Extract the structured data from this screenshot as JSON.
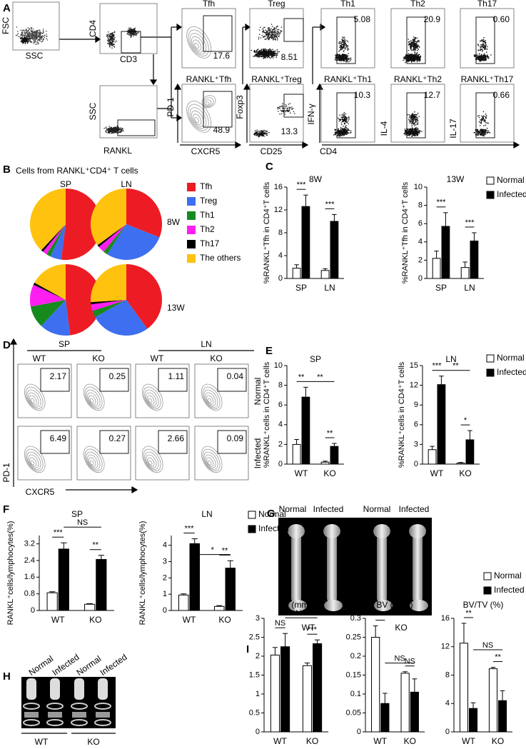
{
  "panel_letters": [
    "A",
    "B",
    "C",
    "D",
    "E",
    "F",
    "G",
    "H",
    "I"
  ],
  "panel_a": {
    "scatter_axes": [
      {
        "x": "SSC",
        "y": "FSC"
      },
      {
        "x": "CD3",
        "y": "CD4"
      },
      {
        "x": "RANKL",
        "y": "SSC"
      }
    ],
    "top_titles": [
      "Tfh",
      "Treg",
      "Th1",
      "Th2",
      "Th17"
    ],
    "top_values": [
      "17.6",
      "8.51",
      "5.08",
      "20.9",
      "0.60"
    ],
    "bottom_titles": [
      "RANKL⁺Tfh",
      "RANKL⁺Treg",
      "RANKL⁺Th1",
      "RANKL⁺Th2",
      "RANKL⁺Th17"
    ],
    "bottom_values": [
      "48.9",
      "13.3",
      "10.3",
      "12.7",
      "0.66"
    ],
    "axis_labels": [
      "PD-1",
      "CXCR5",
      "Foxp3",
      "CD25",
      "IFN-γ",
      "IL-4",
      "IL-17",
      "CD4"
    ]
  },
  "panel_b": {
    "title": "Cells from RANKL⁺CD4⁺ T cells",
    "columns": [
      "SP",
      "LN"
    ],
    "rows": [
      "8W",
      "13W"
    ],
    "legend": [
      {
        "name": "Tfh",
        "color": "#ed1c24"
      },
      {
        "name": "Treg",
        "color": "#3d6ff0"
      },
      {
        "name": "Th1",
        "color": "#178a1d"
      },
      {
        "name": "Th2",
        "color": "#ff1ef0"
      },
      {
        "name": "Th17",
        "color": "#000000"
      },
      {
        "name": "The others",
        "color": "#ffc20e"
      }
    ]
  },
  "panel_d": {
    "groups": [
      "SP",
      "LN"
    ],
    "genotypes": [
      "WT",
      "KO",
      "WT",
      "KO"
    ],
    "rows": [
      "Normal",
      "Infected"
    ],
    "values": [
      [
        "2.17",
        "0.25",
        "1.11",
        "0.04"
      ],
      [
        "6.49",
        "0.27",
        "2.66",
        "0.09"
      ]
    ],
    "y_label": "PD-1",
    "x_label": "CXCR5"
  },
  "panel_g": {
    "labels": [
      "Normal",
      "Infected",
      "Normal",
      "Infected"
    ],
    "genotypes": [
      "WT",
      "KO"
    ]
  },
  "panel_h": {
    "labels": [
      "Normal",
      "Infected",
      "Normal",
      "Infected"
    ],
    "genotypes": [
      "WT",
      "KO"
    ]
  },
  "chart_data": [
    {
      "type": "pie",
      "values": [
        52,
        5,
        2,
        2,
        1,
        38
      ]
    },
    {
      "type": "pie",
      "values": [
        31,
        28,
        2,
        3,
        1,
        35
      ]
    },
    {
      "type": "pie",
      "values": [
        48,
        14,
        10,
        10,
        1,
        17
      ]
    },
    {
      "type": "pie",
      "values": [
        40,
        27,
        3,
        3,
        1,
        26
      ]
    },
    {
      "type": "bar",
      "title": "8W",
      "y_label": "%RANKL⁺Tfh in CD4⁺T cells",
      "categories": [
        "SP",
        "LN"
      ],
      "ylim": [
        0,
        16
      ],
      "yticks": [
        0,
        4,
        8,
        12,
        16
      ],
      "series": [
        {
          "color": "#ffffff",
          "values": [
            1.8,
            1.4
          ],
          "errors": [
            0.6,
            0.3
          ]
        },
        {
          "color": "#000000",
          "values": [
            12.6,
            10.0
          ],
          "errors": [
            2.0,
            1.2
          ]
        }
      ],
      "significance": [
        "***",
        "***"
      ]
    },
    {
      "type": "bar",
      "title": "13W",
      "y_label": "%RANKL⁺Tfh in CD4⁺T cells",
      "categories": [
        "SP",
        "LN"
      ],
      "ylim": [
        0,
        10
      ],
      "yticks": [
        0,
        2,
        4,
        6,
        8,
        10
      ],
      "series": [
        {
          "name": "Normal",
          "color": "#ffffff",
          "values": [
            2.2,
            1.2
          ],
          "errors": [
            0.8,
            0.6
          ]
        },
        {
          "name": "Infected",
          "color": "#000000",
          "values": [
            5.7,
            4.1
          ],
          "errors": [
            1.5,
            0.9
          ]
        }
      ],
      "significance": [
        "***",
        "***"
      ]
    },
    {
      "type": "bar",
      "title": "SP",
      "y_label": "%RANKL⁺cells in CD4⁺T cells",
      "categories": [
        "WT",
        "KO"
      ],
      "ylim": [
        0,
        10
      ],
      "yticks": [
        0,
        2,
        4,
        6,
        8,
        10
      ],
      "series": [
        {
          "color": "#ffffff",
          "values": [
            2.0,
            0.2
          ],
          "errors": [
            0.5,
            0.1
          ]
        },
        {
          "color": "#000000",
          "values": [
            6.8,
            1.8
          ],
          "errors": [
            1.0,
            0.3
          ]
        }
      ],
      "significance": [
        "**",
        "**",
        "**"
      ]
    },
    {
      "type": "bar",
      "title": "LN",
      "y_label": "%RANKL⁺cells in CD4⁺T cells",
      "categories": [
        "WT",
        "KO"
      ],
      "ylim": [
        0,
        15
      ],
      "yticks": [
        0,
        3,
        6,
        9,
        12,
        15
      ],
      "series": [
        {
          "name": "Normal",
          "color": "#ffffff",
          "values": [
            2.2,
            0.15
          ],
          "errors": [
            0.5,
            0.1
          ]
        },
        {
          "name": "Infected",
          "color": "#000000",
          "values": [
            12.1,
            3.7
          ],
          "errors": [
            1.3,
            1.4
          ]
        }
      ],
      "significance": [
        "***",
        "*",
        "**"
      ]
    },
    {
      "type": "bar",
      "title": "SP",
      "y_label": "RANKL⁺cells/lymphocytes(%)",
      "categories": [
        "WT",
        "KO"
      ],
      "ylim": [
        0,
        3.6
      ],
      "yticks": [
        0,
        0.8,
        1.6,
        2.4,
        3.2
      ],
      "series": [
        {
          "color": "#ffffff",
          "values": [
            0.85,
            0.3
          ],
          "errors": [
            0.05,
            0.03
          ]
        },
        {
          "color": "#000000",
          "values": [
            2.95,
            2.45
          ],
          "errors": [
            0.3,
            0.2
          ]
        }
      ],
      "significance": [
        "***",
        "**",
        "NS"
      ]
    },
    {
      "type": "bar",
      "title": "LN",
      "y_label": "RANKL⁺cells/lymphocytes(%)",
      "categories": [
        "WT",
        "KO"
      ],
      "ylim": [
        0,
        4.6
      ],
      "yticks": [
        0,
        1,
        2,
        3,
        4
      ],
      "series": [
        {
          "name": "Normal",
          "color": "#ffffff",
          "values": [
            0.95,
            0.25
          ],
          "errors": [
            0.07,
            0.05
          ]
        },
        {
          "name": "Infected",
          "color": "#000000",
          "values": [
            4.1,
            2.6
          ],
          "errors": [
            0.3,
            0.45
          ]
        }
      ],
      "significance": [
        "***",
        "**",
        "*"
      ]
    },
    {
      "type": "bar",
      "title": "TV (mm³)",
      "categories": [
        "WT",
        "KO"
      ],
      "ylim": [
        0,
        3
      ],
      "yticks": [
        0,
        0.5,
        1,
        1.5,
        2,
        2.5,
        3
      ],
      "series": [
        {
          "color": "#ffffff",
          "values": [
            2.03,
            1.75
          ],
          "errors": [
            0.2,
            0.07
          ]
        },
        {
          "color": "#000000",
          "values": [
            2.25,
            2.33
          ],
          "errors": [
            0.35,
            0.1
          ]
        }
      ],
      "significance": [
        "NS",
        "***",
        "NS"
      ]
    },
    {
      "type": "bar",
      "title": "BV (mm³)",
      "categories": [
        "WT",
        "KO"
      ],
      "ylim": [
        0,
        0.3
      ],
      "yticks": [
        0,
        0.05,
        0.1,
        0.15,
        0.2,
        0.25,
        0.3
      ],
      "series": [
        {
          "color": "#ffffff",
          "values": [
            0.25,
            0.155
          ],
          "errors": [
            0.03,
            0.004
          ]
        },
        {
          "color": "#000000",
          "values": [
            0.075,
            0.105
          ],
          "errors": [
            0.027,
            0.035
          ]
        }
      ],
      "significance": [
        "**",
        "NS",
        "NS"
      ]
    },
    {
      "type": "bar",
      "title": "BV/TV (%)",
      "categories": [
        "WT",
        "KO"
      ],
      "ylim": [
        0,
        16
      ],
      "yticks": [
        0,
        4,
        8,
        12,
        16
      ],
      "series": [
        {
          "name": "Normal",
          "color": "#ffffff",
          "values": [
            12.5,
            8.9
          ],
          "errors": [
            2.8,
            0.2
          ]
        },
        {
          "name": "Infected",
          "color": "#000000",
          "values": [
            3.3,
            4.4
          ],
          "errors": [
            0.8,
            1.4
          ]
        }
      ],
      "significance": [
        "**",
        "**",
        "NS"
      ]
    }
  ]
}
